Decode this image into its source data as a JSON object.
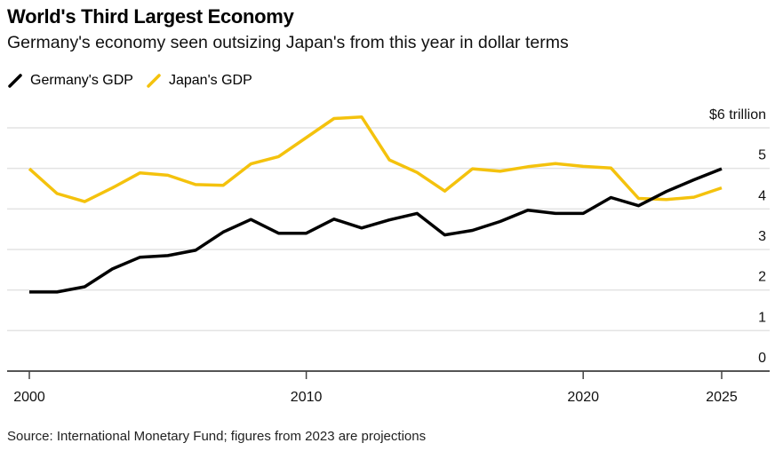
{
  "header": {
    "title": "World's Third Largest Economy",
    "subtitle": "Germany's economy seen outsizing Japan's from this year in dollar terms"
  },
  "legend": [
    {
      "label": "Germany's GDP",
      "color": "#000000"
    },
    {
      "label": "Japan's GDP",
      "color": "#f4c20d"
    }
  ],
  "footer": {
    "source": "Source: International Monetary Fund; figures from 2023 are projections"
  },
  "chart_data": {
    "type": "line",
    "title": "World's Third Largest Economy",
    "subtitle": "Germany's economy seen outsizing Japan's from this year in dollar terms",
    "xlabel": "",
    "ylabel": "$ trillion",
    "x": [
      2000,
      2001,
      2002,
      2003,
      2004,
      2005,
      2006,
      2007,
      2008,
      2009,
      2010,
      2011,
      2012,
      2013,
      2014,
      2015,
      2016,
      2017,
      2018,
      2019,
      2020,
      2021,
      2022,
      2023,
      2024,
      2025
    ],
    "xlim": [
      2000,
      2026.5
    ],
    "ylim": [
      0,
      6
    ],
    "x_ticks": [
      2000,
      2010,
      2020,
      2025
    ],
    "x_tick_labels": [
      "2000",
      "2010",
      "2020",
      "2025"
    ],
    "y_ticks": [
      0,
      1,
      2,
      3,
      4,
      5,
      6
    ],
    "y_tick_labels": [
      "0",
      "1",
      "2",
      "3",
      "4",
      "5",
      "$6 trillion"
    ],
    "grid": true,
    "legend_position": "top-left",
    "series": [
      {
        "name": "Germany's GDP",
        "color": "#000000",
        "values": [
          1.95,
          1.95,
          2.08,
          2.52,
          2.81,
          2.85,
          2.98,
          3.43,
          3.74,
          3.4,
          3.4,
          3.75,
          3.53,
          3.73,
          3.89,
          3.36,
          3.47,
          3.69,
          3.97,
          3.89,
          3.89,
          4.28,
          4.08,
          4.43,
          4.72,
          4.99
        ]
      },
      {
        "name": "Japan's GDP",
        "color": "#f4c20d",
        "values": [
          4.99,
          4.38,
          4.18,
          4.52,
          4.89,
          4.83,
          4.6,
          4.58,
          5.11,
          5.29,
          5.76,
          6.23,
          6.27,
          5.21,
          4.9,
          4.44,
          4.99,
          4.93,
          5.04,
          5.12,
          5.05,
          5.01,
          4.26,
          4.23,
          4.29,
          4.52
        ]
      }
    ],
    "annotations": [
      "figures from 2023 are projections"
    ]
  }
}
